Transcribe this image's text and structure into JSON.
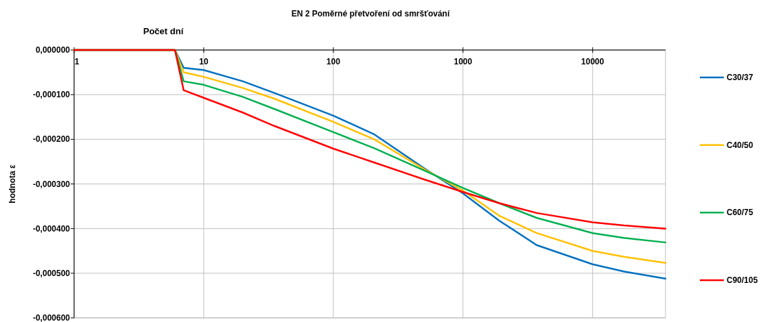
{
  "chart_data": {
    "type": "line",
    "title": "EN 2 Poměrné přetvoření od smršťování",
    "xlabel": "Počet dní",
    "ylabel": "hodnota ε",
    "log": "x",
    "grid": true,
    "legend": "right",
    "line_style": "solid",
    "marker": "none",
    "x": [
      1,
      5,
      6,
      7,
      10,
      20,
      35,
      100,
      207,
      503,
      1000,
      1900,
      3700,
      10000,
      17400,
      36500
    ],
    "xlim": [
      1,
      36500
    ],
    "xticks": [
      1,
      10,
      100,
      1000,
      10000
    ],
    "ylim": [
      -0.0006,
      0
    ],
    "yticks": [
      {
        "value": 0,
        "label": "0,000000"
      },
      {
        "value": -0.0001,
        "label": "-0,000100"
      },
      {
        "value": -0.0002,
        "label": "-0,000200"
      },
      {
        "value": -0.0003,
        "label": "-0,000300"
      },
      {
        "value": -0.0004,
        "label": "-0,000400"
      },
      {
        "value": -0.0005,
        "label": "-0,000500"
      },
      {
        "value": -0.0006,
        "label": "-0,000600"
      }
    ],
    "series": [
      {
        "name": "C30/37",
        "color": "#0070c0",
        "values": [
          0,
          0,
          0,
          -4e-05,
          -4.5e-05,
          -7e-05,
          -9.6e-05,
          -0.000147,
          -0.000189,
          -0.000265,
          -0.000321,
          -0.000382,
          -0.000437,
          -0.00048,
          -0.000496,
          -0.000512
        ]
      },
      {
        "name": "C40/50",
        "color": "#ffc000",
        "values": [
          0,
          0,
          0,
          -5e-05,
          -6e-05,
          -8.5e-05,
          -0.000109,
          -0.000161,
          -0.0002,
          -0.000267,
          -0.000315,
          -0.000371,
          -0.00041,
          -0.00045,
          -0.000463,
          -0.000477
        ]
      },
      {
        "name": "C60/75",
        "color": "#00b050",
        "values": [
          0,
          0,
          0,
          -7e-05,
          -7.8e-05,
          -0.000105,
          -0.000132,
          -0.000184,
          -0.00022,
          -0.00027,
          -0.000309,
          -0.000343,
          -0.000376,
          -0.00041,
          -0.000421,
          -0.000431
        ]
      },
      {
        "name": "C90/105",
        "color": "#ff0000",
        "values": [
          0,
          0,
          0,
          -9e-05,
          -0.000107,
          -0.00014,
          -0.00017,
          -0.000221,
          -0.000252,
          -0.00029,
          -0.000318,
          -0.000343,
          -0.000365,
          -0.000386,
          -0.000393,
          -0.0004
        ]
      }
    ]
  }
}
